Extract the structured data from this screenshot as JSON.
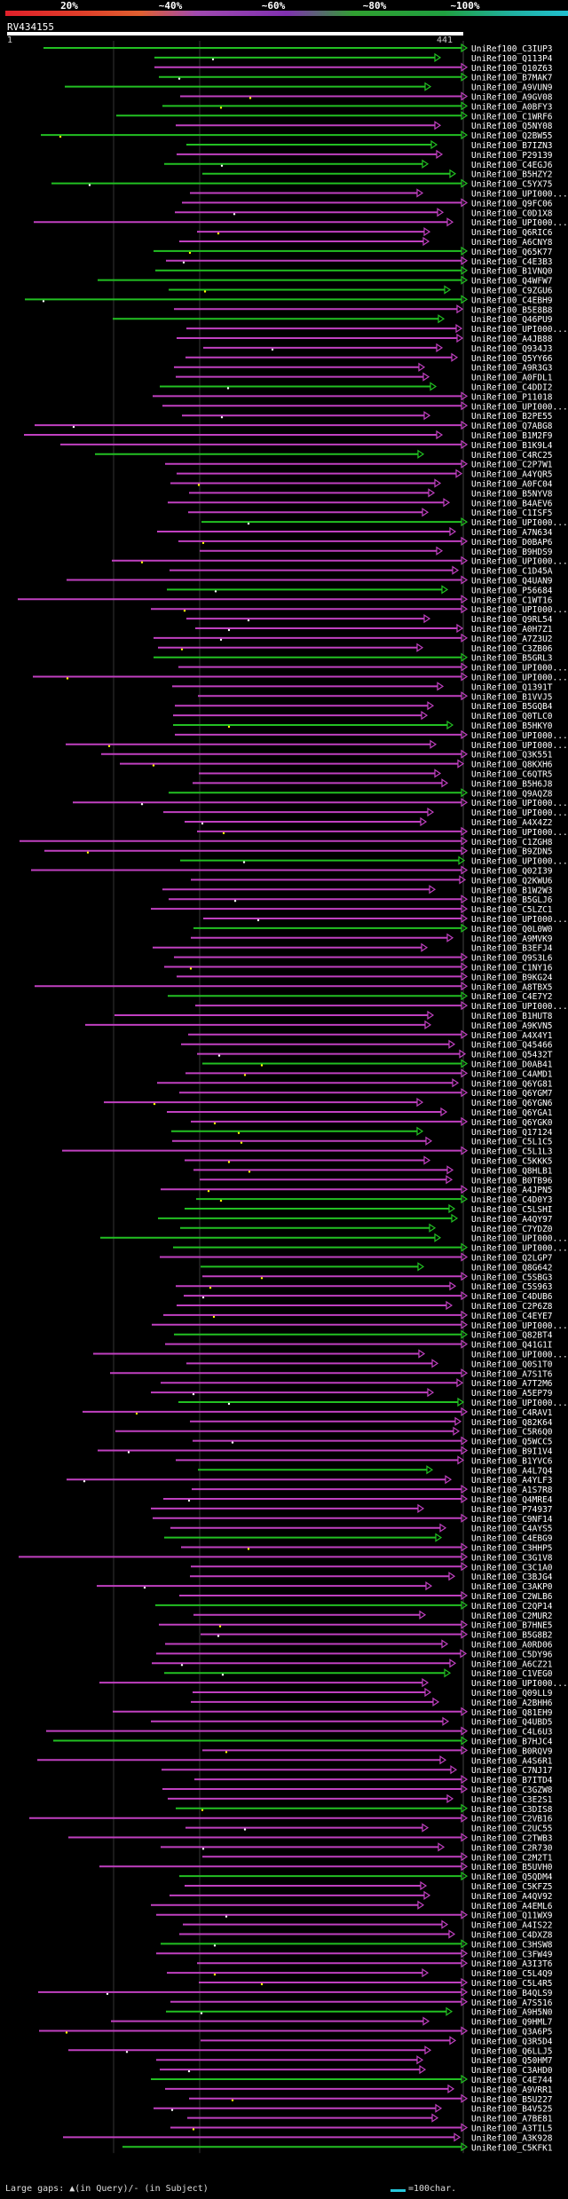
{
  "header": {
    "percent_labels": [
      "20%",
      "~40%",
      "~60%",
      "~80%",
      "~100%"
    ],
    "query_name": "RV434155",
    "query_start": "1",
    "query_end": "441"
  },
  "colors": {
    "high_identity": "#22c022",
    "low_identity": "#c040c0",
    "gap_in_query": "#ffff00",
    "gap_in_subject": "#ffffff",
    "scale_bar": "#26c6da"
  },
  "hits": [
    "UniRef100_C3IUP3",
    "UniRef100_Q113P4",
    "UniRef100_Q10Z63",
    "UniRef100_B7MAK7",
    "UniRef100_A9VUN9",
    "UniRef100_A9GV08",
    "UniRef100_A0BFY3",
    "UniRef100_C1WRF6",
    "UniRef100_Q5NY08",
    "UniRef100_Q2BW55",
    "UniRef100_B7IZN3",
    "UniRef100_P29139",
    "UniRef100_C4EGJ6",
    "UniRef100_B5HZY2",
    "UniRef100_C5YX75",
    "UniRef100_UPI000...",
    "UniRef100_Q9FC06",
    "UniRef100_C0D1X8",
    "UniRef100_UPI000...",
    "UniRef100_Q6RIC6",
    "UniRef100_A6CNY8",
    "UniRef100_Q65K77",
    "UniRef100_C4E3B3",
    "UniRef100_B1VNQ0",
    "UniRef100_Q4WFW7",
    "UniRef100_C9ZGU6",
    "UniRef100_C4EBH9",
    "UniRef100_B5E8B8",
    "UniRef100_Q46PU9",
    "UniRef100_UPI000...",
    "UniRef100_A4JB88",
    "UniRef100_Q934J3",
    "UniRef100_Q5YY66",
    "UniRef100_A9R3G3",
    "UniRef100_A0FDL1",
    "UniRef100_C4DDI2",
    "UniRef100_P11018",
    "UniRef100_UPI000...",
    "UniRef100_B2PE55",
    "UniRef100_Q7ABG8",
    "UniRef100_B1M2F9",
    "UniRef100_B1K9L4",
    "UniRef100_C4RC25",
    "UniRef100_C2P7W1",
    "UniRef100_A4YQR5",
    "UniRef100_A0FC04",
    "UniRef100_B5NYV8",
    "UniRef100_B4AEV6",
    "UniRef100_C1ISF5",
    "UniRef100_UPI000...",
    "UniRef100_A7N634",
    "UniRef100_D0BAP6",
    "UniRef100_B9HDS9",
    "UniRef100_UPI000...",
    "UniRef100_C1D45A",
    "UniRef100_Q4UAN9",
    "UniRef100_P56684",
    "UniRef100_C1WT16",
    "UniRef100_UPI000...",
    "UniRef100_Q9RL54",
    "UniRef100_A0H7Z1",
    "UniRef100_A7Z3U2",
    "UniRef100_C3ZB06",
    "UniRef100_B5GRL3",
    "UniRef100_UPI000...",
    "UniRef100_UPI000...",
    "UniRef100_Q1391T",
    "UniRef100_B1VVJ5",
    "UniRef100_B5GQB4",
    "UniRef100_Q0TLC0",
    "UniRef100_B5HKY0",
    "UniRef100_UPI000...",
    "UniRef100_UPI000...",
    "UniRef100_Q3K551",
    "UniRef100_Q8KXH6",
    "UniRef100_C6QTR5",
    "UniRef100_B5H6J8",
    "UniRef100_Q9AQZ8",
    "UniRef100_UPI000...",
    "UniRef100_UPI000...",
    "UniRef100_A4X4Z2",
    "UniRef100_UPI000...",
    "UniRef100_C1ZGH8",
    "UniRef100_B9ZDN5",
    "UniRef100_UPI000...",
    "UniRef100_Q02I39",
    "UniRef100_Q2KWU6",
    "UniRef100_B1W2W3",
    "UniRef100_B5GLJ6",
    "UniRef100_C5LZC1",
    "UniRef100_UPI000...",
    "UniRef100_Q0L0W0",
    "UniRef100_A9MVK9",
    "UniRef100_B3EFJ4",
    "UniRef100_Q9S3L6",
    "UniRef100_C1NY16",
    "UniRef100_B9KG24",
    "UniRef100_A8TBX5",
    "UniRef100_C4E7Y2",
    "UniRef100_UPI000...",
    "UniRef100_B1HUT8",
    "UniRef100_A9KVN5",
    "UniRef100_A4X4Y1",
    "UniRef100_Q45466",
    "UniRef100_Q5432T",
    "UniRef100_D0AB41",
    "UniRef100_C4AMD1",
    "UniRef100_Q6YG81",
    "UniRef100_Q6YGM7",
    "UniRef100_Q6YGN6",
    "UniRef100_Q6YGA1",
    "UniRef100_Q6YGK0",
    "UniRef100_Q17124",
    "UniRef100_C5L1C5",
    "UniRef100_C5L1L3",
    "UniRef100_C5KKK5",
    "UniRef100_Q8HLB1",
    "UniRef100_B0TB96",
    "UniRef100_A4JPN5",
    "UniRef100_C4D0Y3",
    "UniRef100_C5LSHI",
    "UniRef100_A4QY97",
    "UniRef100_C7YDZ0",
    "UniRef100_UPI000...",
    "UniRef100_UPI000...",
    "UniRef100_Q2LGP7",
    "UniRef100_Q8G642",
    "UniRef100_C5SBG3",
    "UniRef100_C5S963",
    "UniRef100_C4DUB6",
    "UniRef100_C2P6Z8",
    "UniRef100_C4EYE7",
    "UniRef100_UPI000...",
    "UniRef100_Q82BT4",
    "UniRef100_Q41G1I",
    "UniRef100_UPI000...",
    "UniRef100_Q0S1T0",
    "UniRef100_A7S1T6",
    "UniRef100_A7T2M6",
    "UniRef100_A5EP79",
    "UniRef100_UPI000...",
    "UniRef100_C4RAV1",
    "UniRef100_Q82K64",
    "UniRef100_C5R6Q0",
    "UniRef100_Q5WCC5",
    "UniRef100_B9I1V4",
    "UniRef100_B1YVC6",
    "UniRef100_A4L7Q4",
    "UniRef100_A4YLF3",
    "UniRef100_A1S7R8",
    "UniRef100_Q4MRE4",
    "UniRef100_P74937",
    "UniRef100_C9NF14",
    "UniRef100_C4AYS5",
    "UniRef100_C4EBG9",
    "UniRef100_C3HHP5",
    "UniRef100_C3G1V8",
    "UniRef100_C3C1A0",
    "UniRef100_C3BJG4",
    "UniRef100_C3AKP0",
    "UniRef100_C2WLB6",
    "UniRef100_C2QP14",
    "UniRef100_C2MUR2",
    "UniRef100_B7HNE5",
    "UniRef100_B5G8B2",
    "UniRef100_A0RD06",
    "UniRef100_C5DY96",
    "UniRef100_A6CZ21",
    "UniRef100_C1VEG0",
    "UniRef100_UPI000...",
    "UniRef100_Q09LL9",
    "UniRef100_A2BHH6",
    "UniRef100_Q81EH9",
    "UniRef100_Q4UBD5",
    "UniRef100_C4L6U3",
    "UniRef100_B7HJC4",
    "UniRef100_B0RQV9",
    "UniRef100_A4S6R1",
    "UniRef100_C7NJ17",
    "UniRef100_B7ITD4",
    "UniRef100_C3GZW8",
    "UniRef100_C3E2S1",
    "UniRef100_C3DIS8",
    "UniRef100_C2VB16",
    "UniRef100_C2UC55",
    "UniRef100_C2TWB3",
    "UniRef100_C2R730",
    "UniRef100_C2M2T1",
    "UniRef100_B5UVH0",
    "UniRef100_Q5QDM4",
    "UniRef100_C5KFZ5",
    "UniRef100_A4QV92",
    "UniRef100_A4EML6",
    "UniRef100_Q11WX9",
    "UniRef100_A4IS22",
    "UniRef100_C4DXZ8",
    "UniRef100_C3HSW8",
    "UniRef100_C3FW49",
    "UniRef100_A3I3T6",
    "UniRef100_C5L4Q9",
    "UniRef100_C5L4R5",
    "UniRef100_B4QLS9",
    "UniRef100_A7S516",
    "UniRef100_A9H5N0",
    "UniRef100_Q9HML7",
    "UniRef100_Q3A6P5",
    "UniRef100_Q3R5D4",
    "UniRef100_Q6LLJ5",
    "UniRef100_Q50HM7",
    "UniRef100_C3AHD0",
    "UniRef100_C4E744",
    "UniRef100_A9VRR1",
    "UniRef100_B5U227",
    "UniRef100_B4V525",
    "UniRef100_A7BE81",
    "UniRef100_A3TIL5",
    "UniRef100_A3K928",
    "UniRef100_C5KFK1"
  ],
  "footer": {
    "legend_text": "Large gaps: ▲(in Query)/- (in Subject)",
    "scale_text": "=100char."
  }
}
